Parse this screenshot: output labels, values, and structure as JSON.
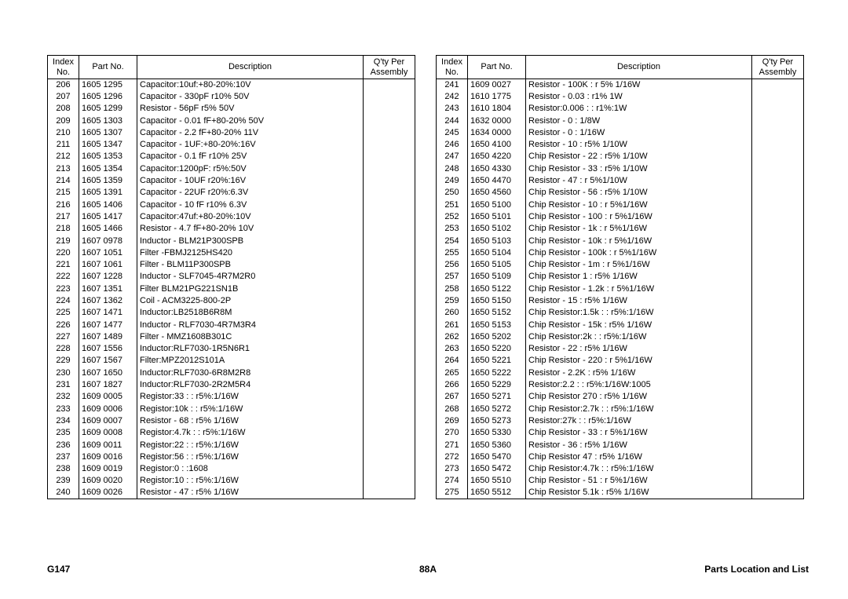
{
  "headers": {
    "index": "Index\nNo.",
    "part": "Part No.",
    "desc": "Description",
    "qty": "Q'ty Per\nAssembly"
  },
  "footer": {
    "left": "G147",
    "center": "88A",
    "right": "Parts Location and List"
  },
  "left_rows": [
    {
      "i": "206",
      "p": "1605 1295",
      "d": "Capacitor:10uf:+80-20%:10V"
    },
    {
      "i": "207",
      "p": "1605 1296",
      "d": "Capacitor - 330pF  r10% 50V"
    },
    {
      "i": "208",
      "p": "1605 1299",
      "d": "Resistor - 56pF  r5% 50V"
    },
    {
      "i": "209",
      "p": "1605 1303",
      "d": "Capacitor - 0.01 fF+80-20% 50V"
    },
    {
      "i": "210",
      "p": "1605 1307",
      "d": "Capacitor - 2.2 fF+80-20% 11V"
    },
    {
      "i": "211",
      "p": "1605 1347",
      "d": "Capacitor - 1UF:+80-20%:16V"
    },
    {
      "i": "212",
      "p": "1605 1353",
      "d": "Capacitor - 0.1 fF r10% 25V"
    },
    {
      "i": "213",
      "p": "1605 1354",
      "d": "Capacitor:1200pF: r5%:50V"
    },
    {
      "i": "214",
      "p": "1605 1359",
      "d": "Capacitor - 10UF  r20%:16V"
    },
    {
      "i": "215",
      "p": "1605 1391",
      "d": "Capacitor - 22UF  r20%:6.3V"
    },
    {
      "i": "216",
      "p": "1605 1406",
      "d": "Capacitor - 10 fF r10% 6.3V"
    },
    {
      "i": "217",
      "p": "1605 1417",
      "d": "Capacitor:47uf:+80-20%:10V"
    },
    {
      "i": "218",
      "p": "1605 1466",
      "d": "Resistor - 4.7 fF+80-20% 10V"
    },
    {
      "i": "219",
      "p": "1607 0978",
      "d": "Inductor - BLM21P300SPB"
    },
    {
      "i": "220",
      "p": "1607 1051",
      "d": "Filter -FBMJ2125HS420"
    },
    {
      "i": "221",
      "p": "1607 1061",
      "d": "Filter - BLM11P300SPB"
    },
    {
      "i": "222",
      "p": "1607 1228",
      "d": "Inductor - SLF7045-4R7M2R0"
    },
    {
      "i": "223",
      "p": "1607 1351",
      "d": "Filter BLM21PG221SN1B"
    },
    {
      "i": "224",
      "p": "1607 1362",
      "d": "Coil - ACM3225-800-2P"
    },
    {
      "i": "225",
      "p": "1607 1471",
      "d": "Inductor:LB2518B6R8M"
    },
    {
      "i": "226",
      "p": "1607 1477",
      "d": "Inductor - RLF7030-4R7M3R4"
    },
    {
      "i": "227",
      "p": "1607 1489",
      "d": "Filter - MMZ1608B301C"
    },
    {
      "i": "228",
      "p": "1607 1556",
      "d": "Inductor:RLF7030-1R5N6R1"
    },
    {
      "i": "229",
      "p": "1607 1567",
      "d": "Filter:MPZ2012S101A"
    },
    {
      "i": "230",
      "p": "1607 1650",
      "d": "Inductor:RLF7030-6R8M2R8"
    },
    {
      "i": "231",
      "p": "1607 1827",
      "d": "Inductor:RLF7030-2R2M5R4"
    },
    {
      "i": "232",
      "p": "1609 0005",
      "d": "Registor:33 : : r5%:1/16W"
    },
    {
      "i": "233",
      "p": "1609 0006",
      "d": "Registor:10k : : r5%:1/16W"
    },
    {
      "i": "234",
      "p": "1609 0007",
      "d": "Resistor - 68 :  r5% 1/16W"
    },
    {
      "i": "235",
      "p": "1609 0008",
      "d": "Registor:4.7k : : r5%:1/16W"
    },
    {
      "i": "236",
      "p": "1609 0011",
      "d": "Registor:22 : : r5%:1/16W"
    },
    {
      "i": "237",
      "p": "1609 0016",
      "d": "Registor:56 : : r5%:1/16W"
    },
    {
      "i": "238",
      "p": "1609 0019",
      "d": "Registor:0 : :1608"
    },
    {
      "i": "239",
      "p": "1609 0020",
      "d": "Registor:10 : : r5%:1/16W"
    },
    {
      "i": "240",
      "p": "1609 0026",
      "d": "Resistor - 47 :  r5% 1/16W"
    }
  ],
  "right_rows": [
    {
      "i": "241",
      "p": "1609 0027",
      "d": "Resistor - 100K : r 5% 1/16W"
    },
    {
      "i": "242",
      "p": "1610 1775",
      "d": "Resistor - 0.03 :  r1% 1W"
    },
    {
      "i": "243",
      "p": "1610 1804",
      "d": "Resistor:0.006 : : r1%:1W"
    },
    {
      "i": "244",
      "p": "1632 0000",
      "d": "Resistor - 0  :  1/8W"
    },
    {
      "i": "245",
      "p": "1634 0000",
      "d": "Resistor - 0  :  1/16W"
    },
    {
      "i": "246",
      "p": "1650 4100",
      "d": "Resistor - 10 :  r5% 1/10W"
    },
    {
      "i": "247",
      "p": "1650 4220",
      "d": "Chip Resistor - 22 :  r5% 1/10W"
    },
    {
      "i": "248",
      "p": "1650 4330",
      "d": "Chip Resistor - 33 :  r5% 1/10W"
    },
    {
      "i": "249",
      "p": "1650 4470",
      "d": "Resistor - 47 : r 5%1/10W"
    },
    {
      "i": "250",
      "p": "1650 4560",
      "d": "Chip Resistor - 56 :  r5% 1/10W"
    },
    {
      "i": "251",
      "p": "1650 5100",
      "d": "Chip Resistor - 10  : r 5%1/16W"
    },
    {
      "i": "252",
      "p": "1650 5101",
      "d": "Chip Resistor - 100  : r 5%1/16W"
    },
    {
      "i": "253",
      "p": "1650 5102",
      "d": "Chip Resistor - 1k : r 5%1/16W"
    },
    {
      "i": "254",
      "p": "1650 5103",
      "d": "Chip Resistor - 10k : r 5%1/16W"
    },
    {
      "i": "255",
      "p": "1650 5104",
      "d": "Chip Resistor - 100k : r 5%1/16W"
    },
    {
      "i": "256",
      "p": "1650 5105",
      "d": "Chip Resistor - 1m : r 5%1/16W"
    },
    {
      "i": "257",
      "p": "1650 5109",
      "d": "Chip Resistor 1 :  r5% 1/16W"
    },
    {
      "i": "258",
      "p": "1650 5122",
      "d": "Chip Resistor - 1.2k : r 5%1/16W"
    },
    {
      "i": "259",
      "p": "1650 5150",
      "d": "Resistor - 15 :  r5% 1/16W"
    },
    {
      "i": "260",
      "p": "1650 5152",
      "d": "Chip Resistor:1.5k : : r5%:1/16W"
    },
    {
      "i": "261",
      "p": "1650 5153",
      "d": "Chip Resistor - 15k :  r5% 1/16W"
    },
    {
      "i": "262",
      "p": "1650 5202",
      "d": "Chip Resistor:2k : : r5%:1/16W"
    },
    {
      "i": "263",
      "p": "1650 5220",
      "d": "Resistor - 22 :  r5% 1/16W"
    },
    {
      "i": "264",
      "p": "1650 5221",
      "d": "Chip Resistor - 220 : r 5%1/16W"
    },
    {
      "i": "265",
      "p": "1650 5222",
      "d": "Resistor - 2.2K :  r5% 1/16W"
    },
    {
      "i": "266",
      "p": "1650 5229",
      "d": "Resistor:2.2 : : r5%:1/16W:1005"
    },
    {
      "i": "267",
      "p": "1650 5271",
      "d": "Chip Resistor 270 :  r5% 1/16W"
    },
    {
      "i": "268",
      "p": "1650 5272",
      "d": "Chip Resistor:2.7k : : r5%:1/16W"
    },
    {
      "i": "269",
      "p": "1650 5273",
      "d": "Resistor:27k : : r5%:1/16W"
    },
    {
      "i": "270",
      "p": "1650 5330",
      "d": "Chip Resistor - 33 : r 5%1/16W"
    },
    {
      "i": "271",
      "p": "1650 5360",
      "d": "Resistor - 36 :  r5% 1/16W"
    },
    {
      "i": "272",
      "p": "1650 5470",
      "d": "Chip Resistor 47 :  r5% 1/16W"
    },
    {
      "i": "273",
      "p": "1650 5472",
      "d": "Chip Resistor:4.7k : : r5%:1/16W"
    },
    {
      "i": "274",
      "p": "1650 5510",
      "d": "Chip Resistor - 51 : r 5%1/16W"
    },
    {
      "i": "275",
      "p": "1650 5512",
      "d": "Chip Resistor 5.1k :  r5% 1/16W"
    }
  ]
}
